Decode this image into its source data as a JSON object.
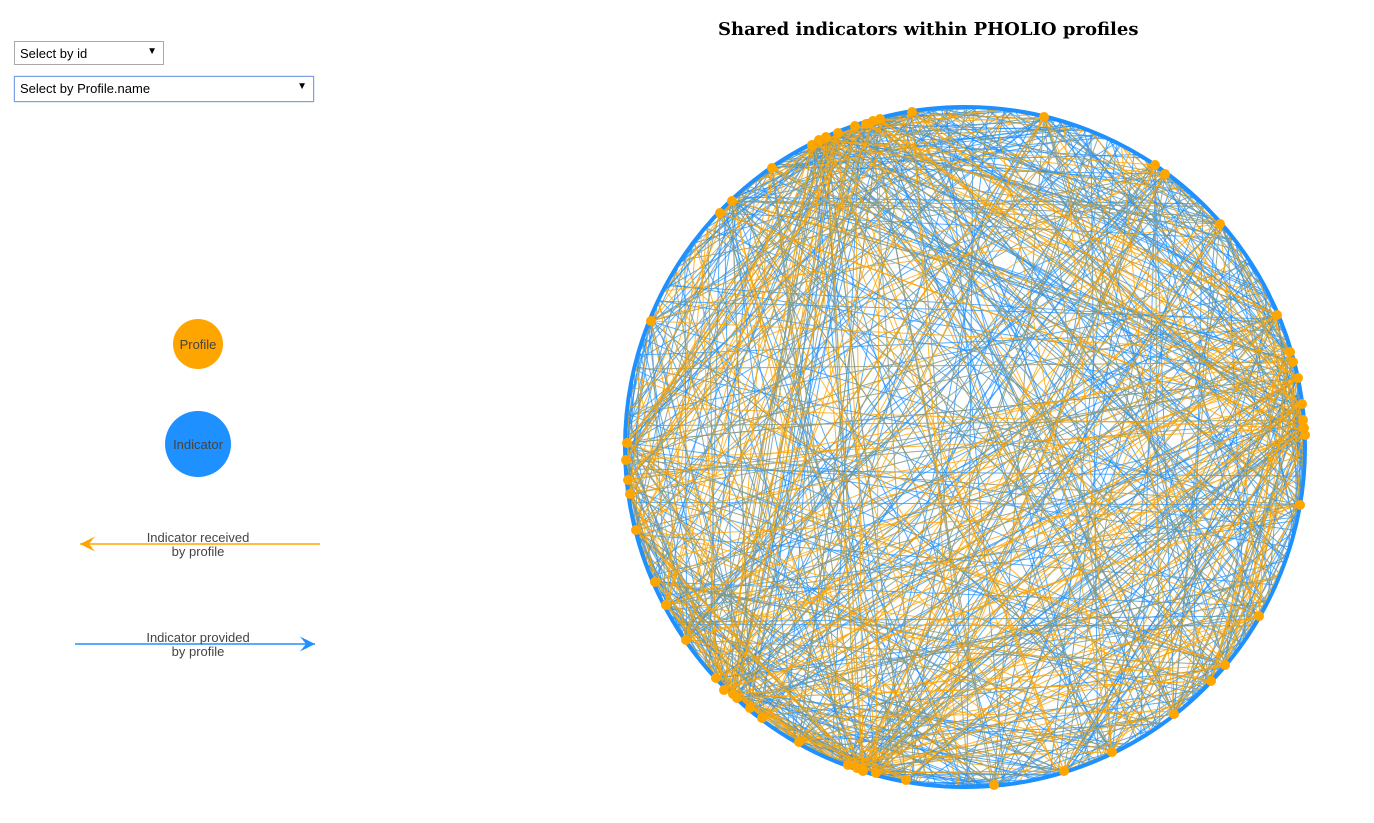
{
  "title": "Shared indicators within PHOLIO profiles",
  "controls": {
    "select_id": "Select by id",
    "select_profile_name": "Select by Profile.name"
  },
  "legend": {
    "profile": "Profile",
    "indicator": "Indicator",
    "received_line1": "Indicator received",
    "received_line2": "by profile",
    "provided_line1": "Indicator provided",
    "provided_line2": "by profile"
  },
  "colors": {
    "profile": "#ffa500",
    "indicator": "#1e90ff",
    "mixed_edge": "#8a9a80"
  }
}
